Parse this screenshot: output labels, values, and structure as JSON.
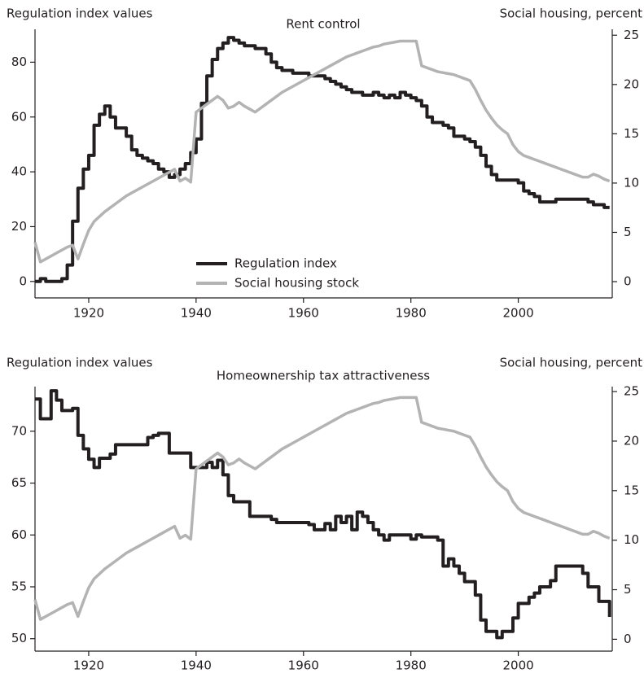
{
  "chart_data": [
    {
      "type": "line",
      "title": "Rent control",
      "y_label": "Regulation index values",
      "y2_label": "Social housing, percent",
      "x": [
        1910,
        1911,
        1912,
        1913,
        1914,
        1915,
        1916,
        1917,
        1918,
        1919,
        1920,
        1921,
        1922,
        1923,
        1924,
        1925,
        1926,
        1927,
        1928,
        1929,
        1930,
        1931,
        1932,
        1933,
        1934,
        1935,
        1936,
        1937,
        1938,
        1939,
        1940,
        1941,
        1942,
        1943,
        1944,
        1945,
        1946,
        1947,
        1948,
        1949,
        1950,
        1951,
        1952,
        1953,
        1954,
        1955,
        1956,
        1957,
        1958,
        1959,
        1960,
        1961,
        1962,
        1963,
        1964,
        1965,
        1966,
        1967,
        1968,
        1969,
        1970,
        1971,
        1972,
        1973,
        1974,
        1975,
        1976,
        1977,
        1978,
        1979,
        1980,
        1981,
        1982,
        1983,
        1984,
        1985,
        1986,
        1987,
        1988,
        1989,
        1990,
        1991,
        1992,
        1993,
        1994,
        1995,
        1996,
        1997,
        1998,
        1999,
        2000,
        2001,
        2002,
        2003,
        2004,
        2005,
        2006,
        2007,
        2008,
        2009,
        2010,
        2011,
        2012,
        2013,
        2014,
        2015,
        2016,
        2017
      ],
      "xlim": [
        1910,
        2017.5
      ],
      "xticks": [
        1920,
        1940,
        1960,
        1980,
        2000
      ],
      "ylim": [
        -6,
        92
      ],
      "yticks": [
        0,
        20,
        40,
        60,
        80
      ],
      "y2lim": [
        -1.65,
        25.6
      ],
      "y2ticks": [
        0,
        5,
        10,
        15,
        20,
        25
      ],
      "legend": "lower center",
      "series": [
        {
          "name": "Regulation index",
          "color": "#231f20",
          "drawstyle": "steps-post",
          "values": [
            0,
            1,
            0,
            0,
            0,
            1,
            6,
            22,
            34,
            41,
            46,
            57,
            61,
            64,
            60,
            56,
            56,
            53,
            48,
            46,
            45,
            44,
            43,
            41,
            40,
            38,
            39,
            41,
            43,
            47,
            52,
            65,
            75,
            81,
            85,
            87,
            89,
            88,
            87,
            86,
            86,
            85,
            85,
            83,
            80,
            78,
            77,
            77,
            76,
            76,
            76,
            75,
            75,
            75,
            74,
            73,
            72,
            71,
            70,
            69,
            69,
            68,
            68,
            69,
            68,
            67,
            68,
            67,
            69,
            68,
            67,
            66,
            64,
            60,
            58,
            58,
            57,
            56,
            53,
            53,
            52,
            51,
            49,
            46,
            42,
            39,
            37,
            37,
            37,
            37,
            36,
            33,
            32,
            31,
            29,
            29,
            29,
            30,
            30,
            30,
            30,
            30,
            30,
            29,
            28,
            28,
            27,
            27
          ]
        },
        {
          "name": "Social housing stock",
          "color": "#b3b3b3",
          "axis": "y2",
          "values": [
            4,
            2,
            2.3,
            2.6,
            2.9,
            3.2,
            3.5,
            3.7,
            2.3,
            3.8,
            5.2,
            6.1,
            6.6,
            7.1,
            7.5,
            7.9,
            8.3,
            8.7,
            9.0,
            9.3,
            9.6,
            9.9,
            10.2,
            10.5,
            10.8,
            11.1,
            11.4,
            10.2,
            10.5,
            10.1,
            17.2,
            17.6,
            18.0,
            18.4,
            18.8,
            18.4,
            17.6,
            17.8,
            18.2,
            17.8,
            17.5,
            17.2,
            17.6,
            18.0,
            18.4,
            18.8,
            19.2,
            19.5,
            19.8,
            20.1,
            20.4,
            20.7,
            21.0,
            21.3,
            21.6,
            21.9,
            22.2,
            22.5,
            22.8,
            23.0,
            23.2,
            23.4,
            23.6,
            23.8,
            23.9,
            24.1,
            24.2,
            24.3,
            24.4,
            24.4,
            24.4,
            24.4,
            21.9,
            21.7,
            21.5,
            21.3,
            21.2,
            21.1,
            21.0,
            20.8,
            20.6,
            20.4,
            19.5,
            18.4,
            17.4,
            16.6,
            15.9,
            15.4,
            15.0,
            13.9,
            13.2,
            12.8,
            12.6,
            12.4,
            12.2,
            12.0,
            11.8,
            11.6,
            11.4,
            11.2,
            11.0,
            10.8,
            10.6,
            10.6,
            10.9,
            10.7,
            10.4,
            10.2
          ]
        }
      ]
    },
    {
      "type": "line",
      "title": "Homeownership tax attractiveness",
      "y_label": "Regulation index values",
      "y2_label": "Social housing, percent",
      "x": [
        1910,
        1911,
        1912,
        1913,
        1914,
        1915,
        1916,
        1917,
        1918,
        1919,
        1920,
        1921,
        1922,
        1923,
        1924,
        1925,
        1926,
        1927,
        1928,
        1929,
        1930,
        1931,
        1932,
        1933,
        1934,
        1935,
        1936,
        1937,
        1938,
        1939,
        1940,
        1941,
        1942,
        1943,
        1944,
        1945,
        1946,
        1947,
        1948,
        1949,
        1950,
        1951,
        1952,
        1953,
        1954,
        1955,
        1956,
        1957,
        1958,
        1959,
        1960,
        1961,
        1962,
        1963,
        1964,
        1965,
        1966,
        1967,
        1968,
        1969,
        1970,
        1971,
        1972,
        1973,
        1974,
        1975,
        1976,
        1977,
        1978,
        1979,
        1980,
        1981,
        1982,
        1983,
        1984,
        1985,
        1986,
        1987,
        1988,
        1989,
        1990,
        1991,
        1992,
        1993,
        1994,
        1995,
        1996,
        1997,
        1998,
        1999,
        2000,
        2001,
        2002,
        2003,
        2004,
        2005,
        2006,
        2007,
        2008,
        2009,
        2010,
        2011,
        2012,
        2013,
        2014,
        2015,
        2016,
        2017
      ],
      "xlim": [
        1910,
        2017.5
      ],
      "xticks": [
        1920,
        1940,
        1960,
        1980,
        2000
      ],
      "ylim": [
        48.8,
        74.3
      ],
      "yticks": [
        50,
        55,
        60,
        65,
        70
      ],
      "y2lim": [
        -1.2,
        25.5
      ],
      "y2ticks": [
        0,
        5,
        10,
        15,
        20,
        25
      ],
      "series": [
        {
          "color": "#231f20",
          "drawstyle": "steps-post",
          "values": [
            73.1,
            71.2,
            71.2,
            73.9,
            73.0,
            72.0,
            72.0,
            72.2,
            69.6,
            68.3,
            67.3,
            66.5,
            67.4,
            67.4,
            67.8,
            68.7,
            68.7,
            68.7,
            68.7,
            68.7,
            68.7,
            69.4,
            69.6,
            69.8,
            69.8,
            67.9,
            67.9,
            67.9,
            67.9,
            66.5,
            66.5,
            66.5,
            67.0,
            66.5,
            67.2,
            65.8,
            63.8,
            63.2,
            63.2,
            63.2,
            61.8,
            61.8,
            61.8,
            61.8,
            61.5,
            61.2,
            61.2,
            61.2,
            61.2,
            61.2,
            61.2,
            61.0,
            60.5,
            60.5,
            61.1,
            60.5,
            61.8,
            61.2,
            61.8,
            60.5,
            62.2,
            61.8,
            61.2,
            60.5,
            60.0,
            59.5,
            60.0,
            60.0,
            60.0,
            60.0,
            59.6,
            60.0,
            59.8,
            59.8,
            59.8,
            59.5,
            57.0,
            57.7,
            57.0,
            56.3,
            55.5,
            55.5,
            54.2,
            51.8,
            50.7,
            50.7,
            50.1,
            50.7,
            50.7,
            52.0,
            53.4,
            53.4,
            54.0,
            54.4,
            55.0,
            55.0,
            55.6,
            57.0,
            57.0,
            57.0,
            57.0,
            57.0,
            56.3,
            55.0,
            55.0,
            53.6,
            53.6,
            52.1
          ]
        },
        {
          "color": "#b3b3b3",
          "axis": "y2",
          "values": [
            4,
            2,
            2.3,
            2.6,
            2.9,
            3.2,
            3.5,
            3.7,
            2.3,
            3.8,
            5.2,
            6.1,
            6.6,
            7.1,
            7.5,
            7.9,
            8.3,
            8.7,
            9.0,
            9.3,
            9.6,
            9.9,
            10.2,
            10.5,
            10.8,
            11.1,
            11.4,
            10.2,
            10.5,
            10.1,
            17.2,
            17.6,
            18.0,
            18.4,
            18.8,
            18.4,
            17.6,
            17.8,
            18.2,
            17.8,
            17.5,
            17.2,
            17.6,
            18.0,
            18.4,
            18.8,
            19.2,
            19.5,
            19.8,
            20.1,
            20.4,
            20.7,
            21.0,
            21.3,
            21.6,
            21.9,
            22.2,
            22.5,
            22.8,
            23.0,
            23.2,
            23.4,
            23.6,
            23.8,
            23.9,
            24.1,
            24.2,
            24.3,
            24.4,
            24.4,
            24.4,
            24.4,
            21.9,
            21.7,
            21.5,
            21.3,
            21.2,
            21.1,
            21.0,
            20.8,
            20.6,
            20.4,
            19.5,
            18.4,
            17.4,
            16.6,
            15.9,
            15.4,
            15.0,
            13.9,
            13.2,
            12.8,
            12.6,
            12.4,
            12.2,
            12.0,
            11.8,
            11.6,
            11.4,
            11.2,
            11.0,
            10.8,
            10.6,
            10.6,
            10.9,
            10.7,
            10.4,
            10.2
          ]
        }
      ]
    }
  ]
}
